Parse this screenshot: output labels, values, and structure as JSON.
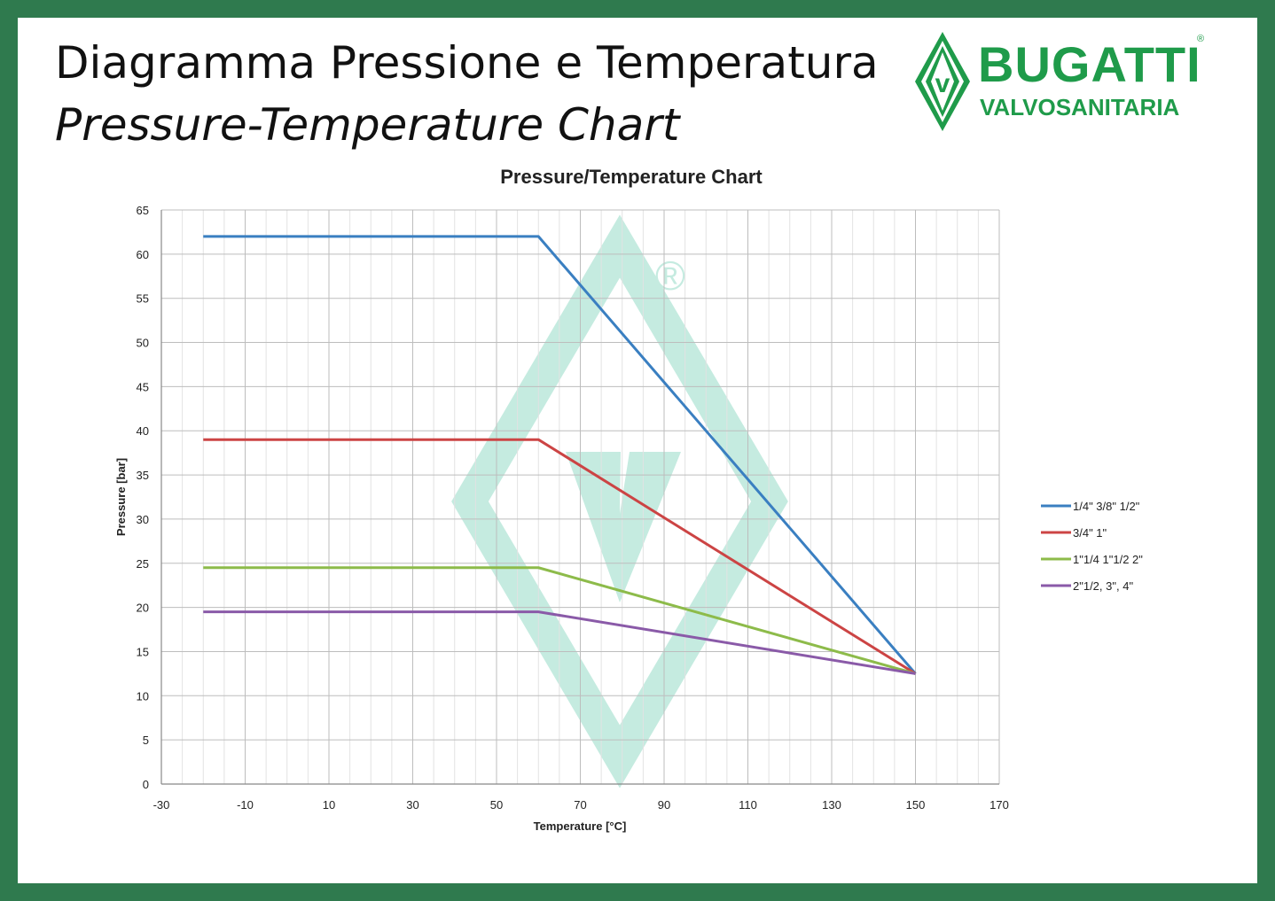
{
  "header": {
    "title_it": "Diagramma Pressione e Temperatura",
    "title_en": "Pressure-Temperature Chart"
  },
  "logo": {
    "brand": "BUGATTI",
    "reg": "®",
    "subbrand": "VALVOSANITARIA",
    "color": "#1f9b4a"
  },
  "chart_data": {
    "type": "line",
    "title": "Pressure/Temperature Chart",
    "xlabel": "Temperature [°C]",
    "ylabel": "Pressure [bar]",
    "xlim": [
      -30,
      170
    ],
    "ylim": [
      0,
      65
    ],
    "xticks": [
      -30,
      -10,
      10,
      30,
      50,
      70,
      90,
      110,
      130,
      150,
      170
    ],
    "yticks": [
      0,
      5,
      10,
      15,
      20,
      25,
      30,
      35,
      40,
      45,
      50,
      55,
      60,
      65
    ],
    "grid": true,
    "legend": "right",
    "series": [
      {
        "name": "1/4\" 3/8\" 1/2\"",
        "color": "#3a7fc1",
        "points": [
          [
            -20,
            62
          ],
          [
            60,
            62
          ],
          [
            150,
            12.5
          ]
        ]
      },
      {
        "name": "3/4\" 1\"",
        "color": "#cc4444",
        "points": [
          [
            -20,
            39
          ],
          [
            60,
            39
          ],
          [
            150,
            12.5
          ]
        ]
      },
      {
        "name": "1\"1/4 1\"1/2  2\"",
        "color": "#8dbb4a",
        "points": [
          [
            -20,
            24.5
          ],
          [
            60,
            24.5
          ],
          [
            150,
            12.5
          ]
        ]
      },
      {
        "name": "2\"1/2, 3\", 4\"",
        "color": "#8a5aa8",
        "points": [
          [
            -20,
            19.5
          ],
          [
            60,
            19.5
          ],
          [
            150,
            12.5
          ]
        ]
      }
    ]
  }
}
